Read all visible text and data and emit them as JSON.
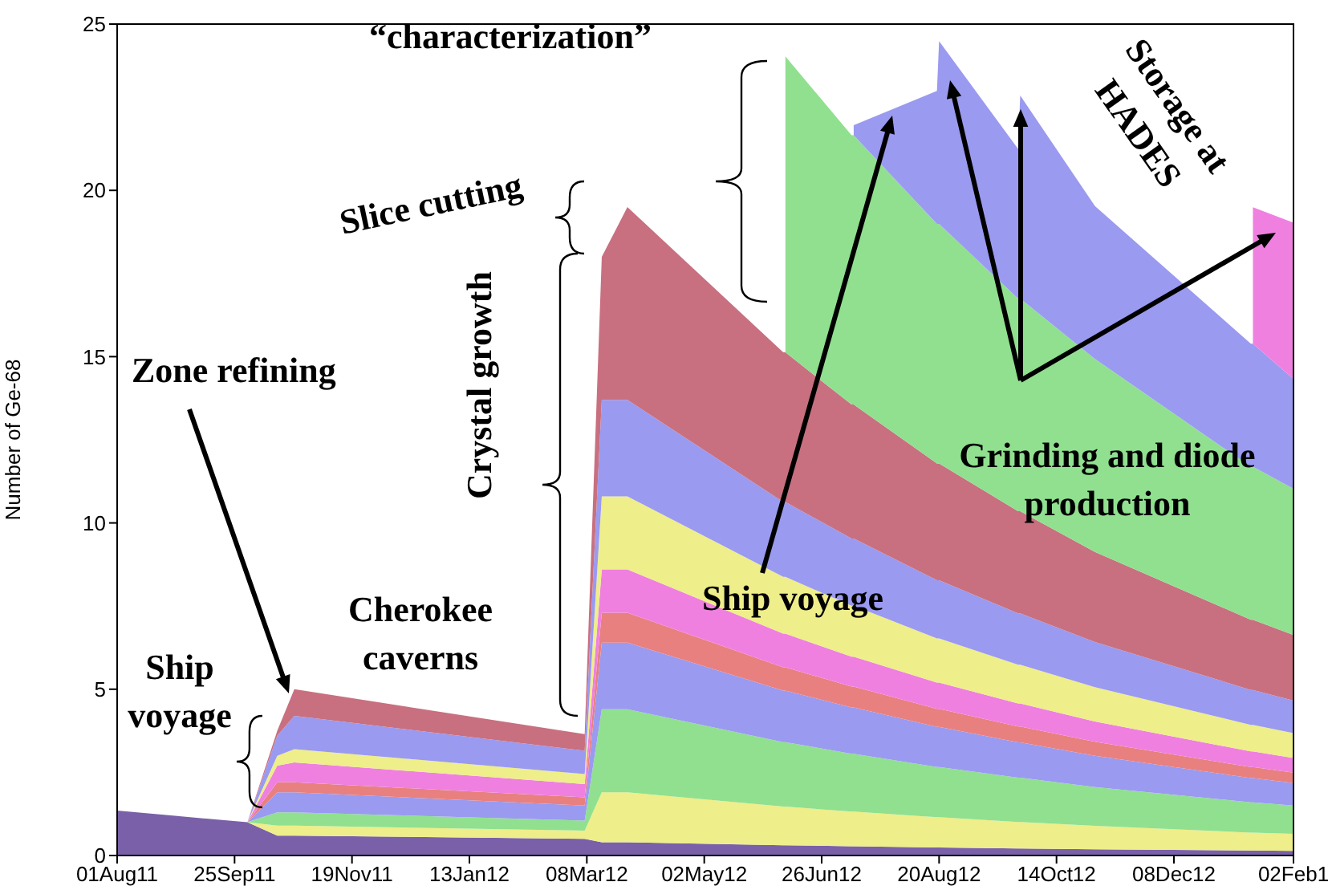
{
  "chart_data": {
    "type": "area",
    "stacked": true,
    "ylabel": "Number of Ge-68",
    "x": [
      "2011-08-01",
      "2011-10-01",
      "2011-10-15",
      "2011-10-23",
      "2012-03-07",
      "2012-03-15",
      "2012-03-27",
      "2012-06-08",
      "2012-06-09",
      "2012-07-10",
      "2012-07-11",
      "2012-08-19",
      "2012-08-20",
      "2012-09-26",
      "2012-09-27",
      "2012-11-01",
      "2013-01-13",
      "2013-01-14",
      "2013-02-02"
    ],
    "series": [
      {
        "color": "#7a60a8",
        "values": [
          1.35,
          1.0,
          0.6,
          0.6,
          0.5,
          0.4,
          0.4,
          0.31,
          0.31,
          0.28,
          0.28,
          0.24,
          0.24,
          0.21,
          0.21,
          0.19,
          0.15,
          0.15,
          0.14
        ]
      },
      {
        "color": "#eeee8a",
        "values": [
          null,
          0,
          0.3,
          0.3,
          0.25,
          1.5,
          1.5,
          1.16,
          1.16,
          1.04,
          1.04,
          0.91,
          0.91,
          0.8,
          0.8,
          0.7,
          0.54,
          0.54,
          0.51
        ]
      },
      {
        "color": "#90e090",
        "values": [
          null,
          0,
          0.4,
          0.4,
          0.3,
          2.5,
          2.5,
          1.94,
          1.94,
          1.74,
          1.74,
          1.51,
          1.51,
          1.33,
          1.33,
          1.17,
          0.91,
          0.91,
          0.85
        ]
      },
      {
        "color": "#9a9af0",
        "values": [
          null,
          0,
          0.6,
          0.6,
          0.45,
          2.0,
          2.0,
          1.55,
          1.55,
          1.39,
          1.39,
          1.21,
          1.21,
          1.06,
          1.06,
          0.94,
          0.73,
          0.73,
          0.68
        ]
      },
      {
        "color": "#e88080",
        "values": [
          null,
          0,
          0.3,
          0.3,
          0.25,
          0.9,
          0.9,
          0.7,
          0.7,
          0.63,
          0.63,
          0.54,
          0.54,
          0.48,
          0.48,
          0.42,
          0.33,
          0.33,
          0.31
        ]
      },
      {
        "color": "#f080e0",
        "values": [
          null,
          0,
          0.5,
          0.6,
          0.4,
          1.3,
          1.3,
          1.01,
          1.01,
          0.9,
          0.9,
          0.79,
          0.79,
          0.69,
          0.69,
          0.61,
          0.47,
          0.47,
          0.44
        ]
      },
      {
        "color": "#eeee8a",
        "values": [
          null,
          0,
          0.3,
          0.4,
          0.3,
          2.2,
          2.2,
          1.71,
          1.71,
          1.53,
          1.53,
          1.33,
          1.33,
          1.17,
          1.17,
          1.03,
          0.8,
          0.8,
          0.75
        ]
      },
      {
        "color": "#9a9af0",
        "values": [
          null,
          0,
          0.6,
          1.0,
          0.7,
          2.9,
          2.9,
          2.25,
          2.25,
          2.02,
          2.02,
          1.75,
          1.75,
          1.54,
          1.54,
          1.36,
          1.05,
          1.05,
          0.98
        ]
      },
      {
        "color": "#c87080",
        "values": [
          null,
          0,
          0.15,
          0.8,
          0.5,
          4.3,
          5.8,
          4.5,
          4.5,
          4.03,
          4.03,
          3.51,
          3.51,
          3.07,
          3.07,
          2.71,
          2.11,
          2.11,
          1.97
        ]
      },
      {
        "color": "#90e090",
        "values": [
          null,
          null,
          null,
          null,
          null,
          null,
          null,
          null,
          8.9,
          8.1,
          8.1,
          7.2,
          7.2,
          6.4,
          6.4,
          5.8,
          4.6,
          4.6,
          4.4
        ]
      },
      {
        "color": "#9a9af0",
        "values": [
          null,
          null,
          null,
          null,
          null,
          null,
          null,
          null,
          null,
          null,
          0.3,
          4.0,
          5.5,
          4.5,
          6.1,
          4.6,
          3.7,
          3.7,
          3.3
        ]
      },
      {
        "color": "#f080e0",
        "values": [
          null,
          null,
          null,
          null,
          null,
          null,
          null,
          null,
          null,
          null,
          null,
          null,
          null,
          null,
          null,
          null,
          null,
          4.1,
          4.7
        ]
      }
    ],
    "xlim": [
      "2011-08-01",
      "2013-02-02"
    ],
    "xticks": [
      {
        "value": "2011-08-01",
        "label": "01Aug11"
      },
      {
        "value": "2011-09-25",
        "label": "25Sep11"
      },
      {
        "value": "2011-11-19",
        "label": "19Nov11"
      },
      {
        "value": "2012-01-13",
        "label": "13Jan12"
      },
      {
        "value": "2012-03-08",
        "label": "08Mar12"
      },
      {
        "value": "2012-05-02",
        "label": "02May12"
      },
      {
        "value": "2012-06-26",
        "label": "26Jun12"
      },
      {
        "value": "2012-08-20",
        "label": "20Aug12"
      },
      {
        "value": "2012-10-14",
        "label": "14Oct12"
      },
      {
        "value": "2012-12-08",
        "label": "08Dec12"
      },
      {
        "value": "2013-02-02",
        "label": "02Feb1"
      }
    ],
    "ylim": [
      0,
      25
    ],
    "yticks": [
      0,
      5,
      10,
      15,
      20,
      25
    ],
    "annotations": [
      "Zone refining",
      {
        "text": "Ship voyage",
        "x": "2011-10-08",
        "y": 2.8
      },
      "Cherokee caverns",
      "Crystal growth",
      "Slice cutting",
      "“characterization”",
      "Ship voyage",
      "Grinding and diode production",
      "Storage at HADES"
    ]
  }
}
